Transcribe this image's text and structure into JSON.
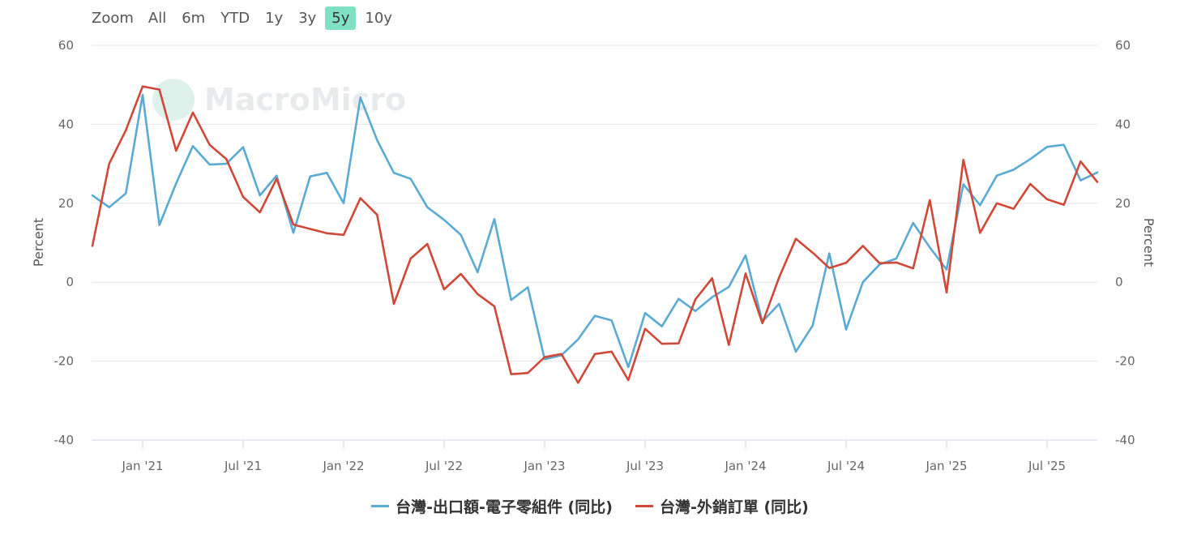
{
  "toolbar": {
    "zoom_label": "Zoom",
    "buttons": [
      "All",
      "6m",
      "YTD",
      "1y",
      "3y",
      "5y",
      "10y"
    ],
    "active": "5y"
  },
  "watermark": "MacroMicro",
  "chart_data": {
    "type": "line",
    "ylabel_left": "Percent",
    "ylabel_right": "Percent",
    "ylim": [
      -40,
      60
    ],
    "yticks": [
      60,
      40,
      20,
      0,
      -20,
      -40
    ],
    "grid": true,
    "legend_position": "bottom",
    "x_tick_labels": [
      "Jan '21",
      "Jul '21",
      "Jan '22",
      "Jul '22",
      "Jan '23",
      "Jul '23",
      "Jan '24",
      "Jul '24",
      "Jan '25",
      "Jul '25"
    ],
    "x": [
      "2020-10",
      "2020-11",
      "2020-12",
      "2021-01",
      "2021-02",
      "2021-03",
      "2021-04",
      "2021-05",
      "2021-06",
      "2021-07",
      "2021-08",
      "2021-09",
      "2021-10",
      "2021-11",
      "2021-12",
      "2022-01",
      "2022-02",
      "2022-03",
      "2022-04",
      "2022-05",
      "2022-06",
      "2022-07",
      "2022-08",
      "2022-09",
      "2022-10",
      "2022-11",
      "2022-12",
      "2023-01",
      "2023-02",
      "2023-03",
      "2023-04",
      "2023-05",
      "2023-06",
      "2023-07",
      "2023-08",
      "2023-09",
      "2023-10",
      "2023-11",
      "2023-12",
      "2024-01",
      "2024-02",
      "2024-03",
      "2024-04",
      "2024-05",
      "2024-06",
      "2024-07",
      "2024-08",
      "2024-09",
      "2024-10",
      "2024-11",
      "2024-12",
      "2025-01",
      "2025-02",
      "2025-03",
      "2025-04",
      "2025-05",
      "2025-06",
      "2025-07",
      "2025-08",
      "2025-09",
      "2025-10"
    ],
    "series": [
      {
        "name": "台灣-出口額-電子零組件 (同比)",
        "color": "#5aaad3",
        "values": [
          22,
          19,
          22.5,
          47.5,
          14.5,
          25,
          34.5,
          29.8,
          30,
          34.2,
          22,
          27,
          12.5,
          26.8,
          27.7,
          20,
          46.8,
          36,
          27.7,
          26.2,
          19,
          15.8,
          12,
          2.5,
          16,
          -4.5,
          -1.3,
          -19.5,
          -18.5,
          -14.5,
          -8.5,
          -9.7,
          -21.5,
          -7.8,
          -11.2,
          -4.2,
          -7.3,
          -3.8,
          -1.2,
          6.8,
          -10,
          -5.5,
          -17.6,
          -11,
          7.3,
          -12,
          0,
          4.5,
          6,
          15,
          8.8,
          3.2,
          24.8,
          19.5,
          27,
          28.5,
          31.2,
          34.3,
          34.8,
          25.8,
          27.8
        ]
      },
      {
        "name": "台灣-外銷訂單 (同比)",
        "color": "#cf4838",
        "values": [
          9.2,
          30,
          38.5,
          49.6,
          48.8,
          33.3,
          43,
          34.8,
          31.2,
          21.6,
          17.7,
          26.2,
          14.6,
          13.5,
          12.4,
          12,
          21.3,
          17.1,
          -5.5,
          6,
          9.7,
          -1.8,
          2.1,
          -3,
          -6.1,
          -23.3,
          -23,
          -19,
          -18.2,
          -25.5,
          -18.2,
          -17.6,
          -24.8,
          -11.8,
          -15.6,
          -15.5,
          -4.4,
          1,
          -15.9,
          2.2,
          -10.4,
          1.2,
          11,
          7.5,
          3.6,
          4.9,
          9.2,
          4.8,
          5,
          3.5,
          20.8,
          -2.6,
          31,
          12.5,
          20,
          18.6,
          24.9,
          21,
          19.6,
          30.6,
          25.4
        ]
      }
    ]
  }
}
